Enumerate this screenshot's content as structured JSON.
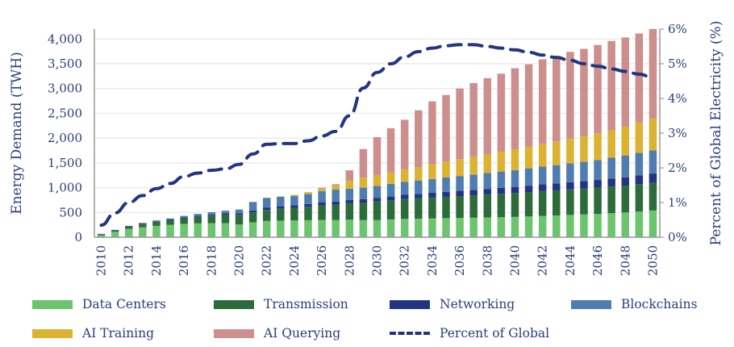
{
  "chart_data": {
    "type": "bar",
    "stacked": true,
    "ylabel": "Energy Demand (TWH)",
    "y2label": "Percent of Global Electricity (%)",
    "ylim": [
      0,
      4200
    ],
    "y2lim": [
      0,
      6
    ],
    "yticks": [
      "0",
      "500",
      "1,000",
      "1,500",
      "2,000",
      "2,500",
      "3,000",
      "3,500",
      "4,000"
    ],
    "y2ticks": [
      "0%",
      "1%",
      "2%",
      "3%",
      "4%",
      "5%",
      "6%"
    ],
    "grid": true,
    "legend": "bottom",
    "categories": [
      2010,
      2011,
      2012,
      2013,
      2014,
      2015,
      2016,
      2017,
      2018,
      2019,
      2020,
      2021,
      2022,
      2023,
      2024,
      2025,
      2026,
      2027,
      2028,
      2029,
      2030,
      2031,
      2032,
      2033,
      2034,
      2035,
      2036,
      2037,
      2038,
      2039,
      2040,
      2041,
      2042,
      2043,
      2044,
      2045,
      2046,
      2047,
      2048,
      2049,
      2050
    ],
    "series": [
      {
        "name": "Data Centers",
        "color": "#6cc46e",
        "values": [
          40,
          110,
          170,
          200,
          230,
          250,
          270,
          280,
          285,
          285,
          260,
          300,
          330,
          335,
          340,
          345,
          350,
          350,
          355,
          345,
          350,
          360,
          370,
          375,
          380,
          385,
          390,
          395,
          400,
          405,
          410,
          420,
          430,
          440,
          450,
          460,
          470,
          485,
          500,
          520,
          540
        ]
      },
      {
        "name": "Transmission",
        "color": "#2e6b3a",
        "values": [
          10,
          20,
          40,
          60,
          80,
          90,
          110,
          130,
          150,
          170,
          190,
          200,
          220,
          240,
          255,
          270,
          290,
          310,
          330,
          355,
          370,
          385,
          400,
          410,
          420,
          430,
          440,
          450,
          460,
          470,
          480,
          490,
          500,
          505,
          515,
          520,
          530,
          535,
          540,
          550,
          555
        ]
      },
      {
        "name": "Networking",
        "color": "#233580",
        "values": [
          10,
          10,
          10,
          10,
          10,
          20,
          20,
          20,
          20,
          30,
          30,
          40,
          50,
          50,
          50,
          55,
          60,
          60,
          65,
          70,
          75,
          80,
          85,
          90,
          95,
          100,
          105,
          110,
          115,
          120,
          125,
          130,
          135,
          140,
          145,
          150,
          155,
          165,
          170,
          180,
          190
        ]
      },
      {
        "name": "Blockchains",
        "color": "#4f7db0",
        "values": [
          10,
          10,
          10,
          20,
          20,
          20,
          30,
          40,
          50,
          50,
          80,
          170,
          190,
          190,
          190,
          200,
          230,
          240,
          230,
          230,
          240,
          250,
          260,
          270,
          280,
          290,
          300,
          310,
          320,
          330,
          340,
          350,
          360,
          370,
          380,
          390,
          400,
          420,
          440,
          455,
          470
        ]
      },
      {
        "name": "AI Training",
        "color": "#dbb232",
        "values": [
          0,
          0,
          0,
          0,
          0,
          0,
          0,
          0,
          0,
          0,
          0,
          5,
          10,
          10,
          20,
          40,
          50,
          90,
          160,
          200,
          220,
          235,
          250,
          270,
          300,
          320,
          340,
          360,
          380,
          400,
          420,
          440,
          460,
          480,
          500,
          520,
          540,
          560,
          580,
          610,
          640
        ]
      },
      {
        "name": "AI Querying",
        "color": "#cc8f8d",
        "values": [
          0,
          0,
          0,
          0,
          0,
          0,
          0,
          0,
          0,
          0,
          0,
          0,
          0,
          0,
          0,
          0,
          20,
          20,
          210,
          580,
          765,
          890,
          1005,
          1145,
          1265,
          1345,
          1425,
          1485,
          1535,
          1575,
          1635,
          1660,
          1705,
          1725,
          1750,
          1760,
          1785,
          1795,
          1800,
          1795,
          1805
        ]
      }
    ],
    "line": {
      "name": "Percent of Global",
      "axis": "right",
      "color": "#233580",
      "style": "dashed",
      "values": [
        0.35,
        0.7,
        1.0,
        1.2,
        1.4,
        1.55,
        1.75,
        1.85,
        1.93,
        1.97,
        2.1,
        2.4,
        2.68,
        2.7,
        2.7,
        2.78,
        2.92,
        3.05,
        3.5,
        4.3,
        4.75,
        5.0,
        5.2,
        5.35,
        5.45,
        5.52,
        5.55,
        5.55,
        5.5,
        5.45,
        5.4,
        5.33,
        5.25,
        5.18,
        5.1,
        5.0,
        4.93,
        4.85,
        4.78,
        4.7,
        4.6
      ]
    }
  }
}
